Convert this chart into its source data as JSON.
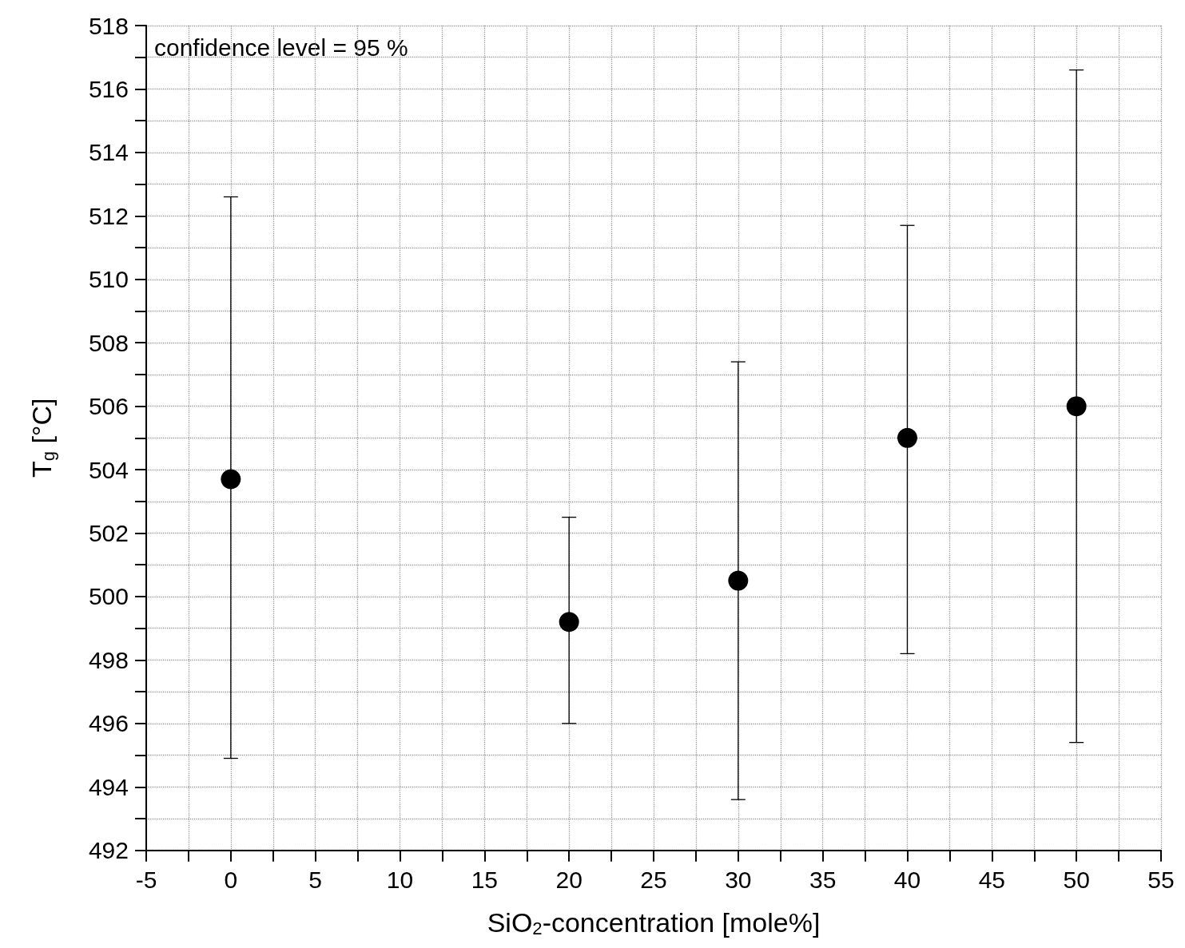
{
  "chart_data": {
    "type": "scatter",
    "xlabel": "SiO$_{2}$-concentration [mole%]",
    "ylabel": "T$_{g}$ [°C]",
    "annotations": [
      "confidence level = 95 %"
    ],
    "x": [
      0,
      20,
      30,
      40,
      50
    ],
    "values": [
      503.7,
      499.2,
      500.5,
      505.0,
      506.0
    ],
    "errors": [
      [
        494.9,
        512.6
      ],
      [
        496.0,
        502.5
      ],
      [
        493.6,
        507.4
      ],
      [
        498.2,
        511.7
      ],
      [
        495.4,
        516.6
      ]
    ],
    "color": "#000000",
    "marker": "circle",
    "xlim": [
      -5,
      55
    ],
    "xticks": [
      -5,
      0,
      5,
      10,
      15,
      20,
      25,
      30,
      35,
      40,
      45,
      50,
      55
    ],
    "ylim": [
      492,
      518
    ],
    "yticks": [
      492,
      494,
      496,
      498,
      500,
      502,
      504,
      506,
      508,
      510,
      512,
      514,
      516,
      518
    ],
    "grid": true
  }
}
